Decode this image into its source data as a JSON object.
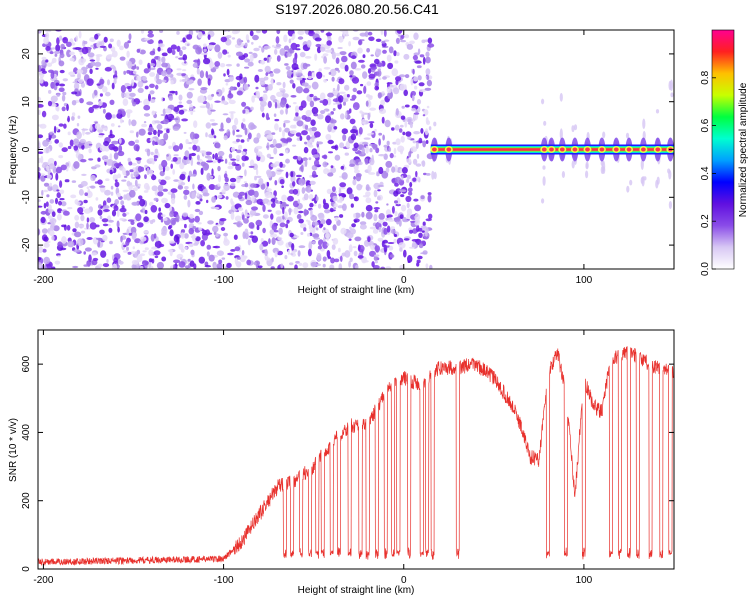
{
  "title": "S197.2026.080.20.56.C41",
  "colors": {
    "snr_line": "#e8302c",
    "frame": "#000000",
    "colorscale": [
      "#ffffff",
      "#d8c8f4",
      "#8a4ce8",
      "#6010e0",
      "#0000ff",
      "#00a0ff",
      "#00ffd0",
      "#00ff40",
      "#c8ff00",
      "#ffc000",
      "#ff2020",
      "#ff0090"
    ]
  },
  "chart_data": [
    {
      "type": "heatmap",
      "name": "spectrogram",
      "xlabel": "Height of straight line (km)",
      "ylabel": "Frequency (Hz)",
      "xlim": [
        -203,
        150
      ],
      "ylim": [
        -25,
        25
      ],
      "x_ticks": [
        -200,
        -100,
        0,
        100
      ],
      "y_ticks": [
        -20,
        -10,
        0,
        10,
        20
      ],
      "tick_labels_x": [
        "-200",
        "-100",
        "0",
        "100"
      ],
      "tick_labels_y": [
        "-20",
        "-10",
        "0",
        "10",
        "20"
      ],
      "noise_region": [
        -203,
        15
      ],
      "signal_frequency": 0,
      "signal_start": 15,
      "signal_bursts": [
        17,
        25,
        78,
        82,
        88,
        95,
        102,
        110,
        118,
        125,
        133,
        141,
        148
      ]
    },
    {
      "type": "colorbar",
      "name": "amplitude-colorbar",
      "label": "Normalized spectral amplitude",
      "range": [
        0,
        1
      ],
      "ticks": [
        0,
        0.2,
        0.4,
        0.6,
        0.8
      ],
      "tick_labels": [
        "0.0",
        "0.2",
        "0.4",
        "0.6",
        "0.8"
      ]
    },
    {
      "type": "line",
      "name": "snr-plot",
      "xlabel": "Height of straight line (km)",
      "ylabel": "SNR (10 * v/v)",
      "xlim": [
        -203,
        150
      ],
      "ylim": [
        0,
        700
      ],
      "x_ticks": [
        -200,
        -100,
        0,
        100
      ],
      "y_ticks": [
        0,
        200,
        400,
        600
      ],
      "tick_labels_x": [
        "-200",
        "-100",
        "0",
        "100"
      ],
      "tick_labels_y": [
        "0",
        "200",
        "400",
        "600"
      ],
      "envelope_x": [
        -203,
        -150,
        -100,
        -90,
        -80,
        -70,
        -60,
        -50,
        -40,
        -30,
        -20,
        -10,
        0,
        10,
        20,
        30,
        40,
        50,
        60,
        65,
        70,
        75,
        80,
        85,
        90,
        95,
        100,
        105,
        110,
        115,
        120,
        125,
        130,
        140,
        150
      ],
      "envelope_y": [
        20,
        25,
        30,
        80,
        160,
        240,
        260,
        300,
        370,
        420,
        420,
        520,
        560,
        540,
        590,
        590,
        600,
        560,
        480,
        420,
        330,
        320,
        560,
        640,
        520,
        210,
        560,
        480,
        460,
        620,
        620,
        640,
        620,
        590,
        580
      ],
      "dropout_x": [
        -66,
        -62,
        -57,
        -52,
        -48,
        -45,
        -40,
        -36,
        -30,
        -24,
        -20,
        -15,
        -10,
        -6,
        -3,
        3,
        10,
        13,
        16,
        30,
        80,
        90,
        100,
        115,
        120,
        125,
        130,
        137,
        143,
        148
      ],
      "dropout_level": 35
    }
  ]
}
